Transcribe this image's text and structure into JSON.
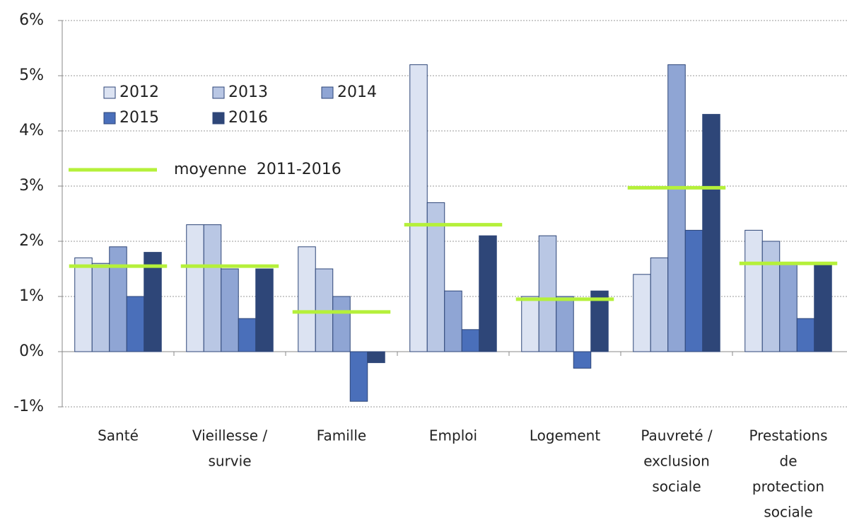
{
  "chart_data": {
    "type": "bar",
    "categories": [
      [
        "Santé"
      ],
      [
        "Vieillesse /",
        "survie"
      ],
      [
        "Famille"
      ],
      [
        "Emploi"
      ],
      [
        "Logement"
      ],
      [
        "Pauvreté /",
        "exclusion",
        "sociale"
      ],
      [
        "Prestations",
        "de",
        "protection",
        "sociale"
      ]
    ],
    "series": [
      {
        "name": "2012",
        "color": "#dce3f2",
        "values": [
          1.7,
          2.3,
          1.9,
          5.2,
          1.0,
          1.4,
          2.2
        ]
      },
      {
        "name": "2013",
        "color": "#b9c7e4",
        "values": [
          1.6,
          2.3,
          1.5,
          2.7,
          2.1,
          1.7,
          2.0
        ]
      },
      {
        "name": "2014",
        "color": "#8fa5d4",
        "values": [
          1.9,
          1.5,
          1.0,
          1.1,
          1.0,
          5.2,
          1.6
        ]
      },
      {
        "name": "2015",
        "color": "#4a6fba",
        "values": [
          1.0,
          0.6,
          -0.9,
          0.4,
          -0.3,
          2.2,
          0.6
        ]
      },
      {
        "name": "2016",
        "color": "#2e4678",
        "values": [
          1.8,
          1.5,
          -0.2,
          2.1,
          1.1,
          4.3,
          1.6
        ]
      }
    ],
    "average": {
      "name": "moyenne  2011-2016",
      "color": "#b5f03a",
      "values": [
        1.55,
        1.55,
        0.72,
        2.3,
        0.95,
        2.97,
        1.6
      ]
    },
    "ylim": [
      -1,
      6
    ],
    "yticks": [
      {
        "value": -1,
        "label": "-1%"
      },
      {
        "value": 0,
        "label": "0%"
      },
      {
        "value": 1,
        "label": "1%"
      },
      {
        "value": 2,
        "label": "2%"
      },
      {
        "value": 3,
        "label": "3%"
      },
      {
        "value": 4,
        "label": "4%"
      },
      {
        "value": 5,
        "label": "5%"
      },
      {
        "value": 6,
        "label": "6%"
      }
    ],
    "grid": true
  }
}
